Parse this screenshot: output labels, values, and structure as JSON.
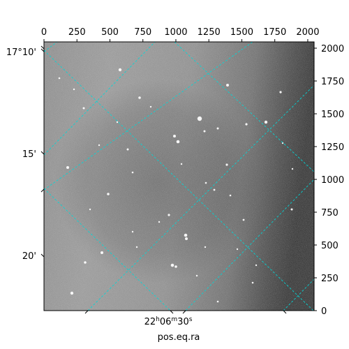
{
  "chart_data": {
    "type": "image",
    "xlabel": "pos.eq.ra",
    "top_ticks": [
      "0",
      "250",
      "500",
      "750",
      "1000",
      "1250",
      "1500",
      "1750",
      "2000"
    ],
    "top_tick_values": [
      0,
      250,
      500,
      750,
      1000,
      1250,
      1500,
      1750,
      2000
    ],
    "right_ticks": [
      "0",
      "250",
      "500",
      "750",
      "1000",
      "1250",
      "1500",
      "1750",
      "2000"
    ],
    "right_tick_values": [
      0,
      250,
      500,
      750,
      1000,
      1250,
      1500,
      1750,
      2000
    ],
    "pixel_range": [
      0,
      2048
    ],
    "left_ticks": [
      "17°10'",
      "15'",
      "20'"
    ],
    "bottom_tick": {
      "h": "22",
      "hu": "h",
      "m": "06",
      "mu": "m",
      "s": "30",
      "su": "s"
    },
    "grid": "on",
    "grid_color": "#00d8d8",
    "colormap": "gray"
  }
}
